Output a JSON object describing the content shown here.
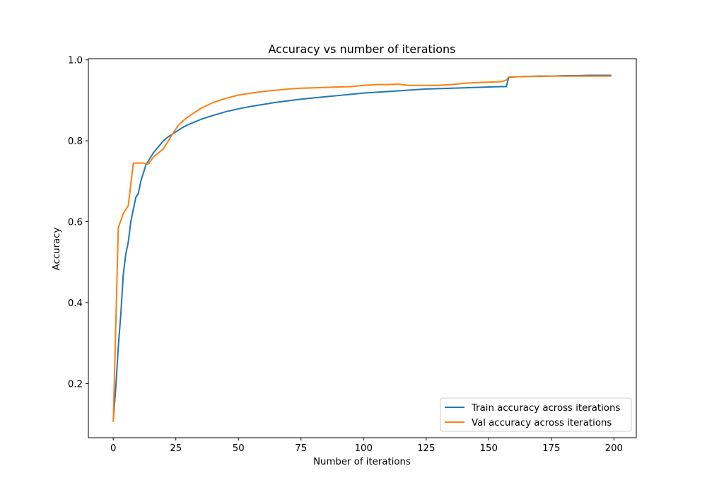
{
  "chart_data": {
    "type": "line",
    "title": "Accuracy vs number of iterations",
    "xlabel": "Number of iterations",
    "ylabel": "Accuracy",
    "xlim": [
      -9.95,
      208.95
    ],
    "ylim": [
      0.066,
      1.003
    ],
    "xticks": [
      0,
      25,
      50,
      75,
      100,
      125,
      150,
      175,
      200
    ],
    "xtick_labels": [
      "0",
      "25",
      "50",
      "75",
      "100",
      "125",
      "150",
      "175",
      "200"
    ],
    "yticks": [
      0.2,
      0.4,
      0.6,
      0.8,
      1.0
    ],
    "ytick_labels": [
      "0.2",
      "0.4",
      "0.6",
      "0.8",
      "1.0"
    ],
    "grid": false,
    "legend_position": "lower-right",
    "series": [
      {
        "name": "Train accuracy across iterations",
        "color": "#1f77b4",
        "x": [
          0,
          1,
          2,
          3,
          4,
          5,
          6,
          7,
          8,
          9,
          10,
          11,
          12,
          13,
          14,
          15,
          16,
          18,
          20,
          22,
          24,
          26,
          28,
          30,
          35,
          40,
          45,
          50,
          55,
          60,
          65,
          70,
          75,
          80,
          85,
          90,
          95,
          100,
          105,
          110,
          115,
          120,
          125,
          130,
          135,
          140,
          145,
          150,
          155,
          157,
          158,
          160,
          165,
          170,
          175,
          180,
          185,
          190,
          195,
          199
        ],
        "y": [
          0.11,
          0.19,
          0.29,
          0.37,
          0.47,
          0.52,
          0.55,
          0.6,
          0.63,
          0.66,
          0.67,
          0.7,
          0.72,
          0.74,
          0.75,
          0.76,
          0.77,
          0.785,
          0.8,
          0.81,
          0.818,
          0.826,
          0.834,
          0.84,
          0.853,
          0.863,
          0.872,
          0.879,
          0.885,
          0.89,
          0.895,
          0.899,
          0.903,
          0.906,
          0.909,
          0.912,
          0.915,
          0.918,
          0.92,
          0.922,
          0.924,
          0.926,
          0.928,
          0.929,
          0.93,
          0.931,
          0.932,
          0.933,
          0.934,
          0.934,
          0.957,
          0.958,
          0.959,
          0.96,
          0.96,
          0.961,
          0.961,
          0.962,
          0.962,
          0.962
        ]
      },
      {
        "name": "Val accuracy across iterations",
        "color": "#ff7f0e",
        "x": [
          0,
          2,
          4,
          6,
          8,
          10,
          12,
          14,
          16,
          18,
          20,
          22,
          24,
          26,
          28,
          30,
          35,
          40,
          45,
          50,
          55,
          60,
          65,
          70,
          75,
          80,
          85,
          90,
          95,
          100,
          105,
          110,
          114,
          118,
          122,
          126,
          130,
          135,
          140,
          145,
          150,
          155,
          157,
          158,
          160,
          165,
          170,
          175,
          180,
          185,
          190,
          195,
          199
        ],
        "y": [
          0.105,
          0.585,
          0.62,
          0.64,
          0.745,
          0.745,
          0.745,
          0.742,
          0.76,
          0.77,
          0.78,
          0.8,
          0.82,
          0.838,
          0.85,
          0.86,
          0.88,
          0.895,
          0.905,
          0.913,
          0.918,
          0.922,
          0.925,
          0.928,
          0.93,
          0.931,
          0.932,
          0.933,
          0.934,
          0.937,
          0.939,
          0.939,
          0.94,
          0.937,
          0.937,
          0.937,
          0.937,
          0.939,
          0.942,
          0.944,
          0.945,
          0.946,
          0.95,
          0.958,
          0.958,
          0.959,
          0.959,
          0.96,
          0.96,
          0.96,
          0.96,
          0.96,
          0.96
        ]
      }
    ]
  }
}
